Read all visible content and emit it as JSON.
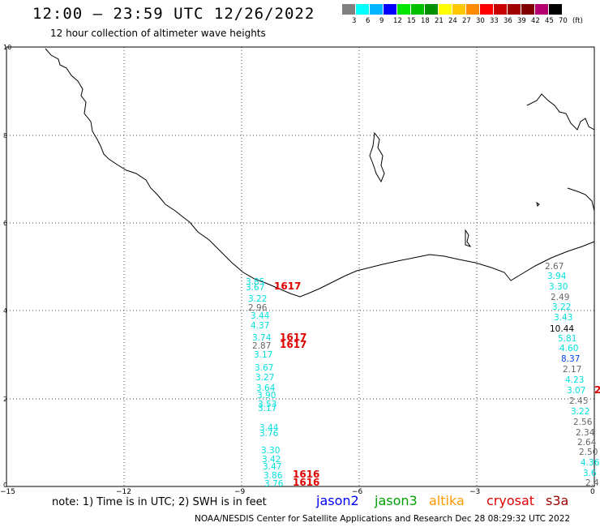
{
  "header": {
    "title": "12:00 – 23:59 UTC 12/26/2022",
    "subtitle": "12 hour collection of altimeter wave heights"
  },
  "colorbar": {
    "colors": [
      "#808080",
      "#00ffff",
      "#00b4ff",
      "#0000ff",
      "#00e600",
      "#00c000",
      "#009000",
      "#ffff00",
      "#ffc800",
      "#ff8c00",
      "#ff0000",
      "#c80000",
      "#a00000",
      "#800000",
      "#b4006e",
      "#000000"
    ],
    "labels": [
      "3",
      "6",
      "9",
      "12",
      "15",
      "18",
      "21",
      "24",
      "27",
      "30",
      "33",
      "36",
      "39",
      "42",
      "45",
      "70"
    ],
    "unit": "(ft)"
  },
  "axes": {
    "x_ticks": [
      "−15",
      "−12",
      "−9",
      "−6",
      "−3",
      "0"
    ],
    "y_ticks": [
      "10",
      "8",
      "6",
      "4",
      "2",
      "0"
    ]
  },
  "wave_colors": {
    "jason3": "#00e0e0",
    "gray": "#666666",
    "cryosat": "#e00000",
    "black": "#000000",
    "blue": "#0040ff"
  },
  "tracks": {
    "track_left": [
      {
        "v": "3.85",
        "c": "jason3"
      },
      {
        "v": "3.67",
        "c": "jason3"
      },
      {
        "v": "3.22",
        "c": "jason3"
      },
      {
        "v": "2.96",
        "c": "gray"
      },
      {
        "v": "3.44",
        "c": "jason3"
      },
      {
        "v": "4.37",
        "c": "jason3"
      },
      {
        "v": "3.74",
        "c": "jason3"
      },
      {
        "v": "2.87",
        "c": "gray"
      },
      {
        "v": "3.17",
        "c": "jason3"
      },
      {
        "v": "3.67",
        "c": "jason3"
      },
      {
        "v": "3.27",
        "c": "jason3"
      },
      {
        "v": "3.64",
        "c": "jason3"
      },
      {
        "v": "3.90",
        "c": "jason3"
      },
      {
        "v": "3.53",
        "c": "jason3"
      },
      {
        "v": "3.17",
        "c": "jason3"
      },
      {
        "v": "3.44",
        "c": "jason3"
      },
      {
        "v": "3.76",
        "c": "jason3"
      },
      {
        "v": "3.30",
        "c": "jason3"
      },
      {
        "v": "3.42",
        "c": "jason3"
      },
      {
        "v": "3.47",
        "c": "jason3"
      },
      {
        "v": "3.86",
        "c": "jason3"
      },
      {
        "v": "3.76",
        "c": "jason3"
      }
    ],
    "cryosat_times": [
      "1617",
      "1617",
      "1617",
      "1616",
      "1616"
    ],
    "track_right": [
      {
        "v": "2.67",
        "c": "gray"
      },
      {
        "v": "3.94",
        "c": "jason3"
      },
      {
        "v": "3.30",
        "c": "jason3"
      },
      {
        "v": "2.49",
        "c": "gray"
      },
      {
        "v": "3.22",
        "c": "jason3"
      },
      {
        "v": "3.43",
        "c": "jason3"
      },
      {
        "v": "10.44",
        "c": "black"
      },
      {
        "v": "5.81",
        "c": "jason3"
      },
      {
        "v": "4.60",
        "c": "jason3"
      },
      {
        "v": "8.37",
        "c": "blue"
      },
      {
        "v": "2.17",
        "c": "gray"
      },
      {
        "v": "4.23",
        "c": "jason3"
      },
      {
        "v": "3.07",
        "c": "jason3"
      },
      {
        "v": "2.45",
        "c": "gray"
      },
      {
        "v": "3.22",
        "c": "jason3"
      },
      {
        "v": "2.56",
        "c": "gray"
      },
      {
        "v": "2.34",
        "c": "gray"
      },
      {
        "v": "2.64",
        "c": "gray"
      },
      {
        "v": "2.50",
        "c": "gray"
      },
      {
        "v": "4.36",
        "c": "jason3"
      },
      {
        "v": "3.6",
        "c": "jason3"
      },
      {
        "v": "2.4",
        "c": "gray"
      }
    ],
    "edge_time": "2"
  },
  "note": "note: 1) Time is in UTC; 2) SWH is in feet",
  "legend": [
    {
      "label": "jason2",
      "color": "#0000ff"
    },
    {
      "label": "jason3",
      "color": "#00a000"
    },
    {
      "label": "altika",
      "color": "#ff9900"
    },
    {
      "label": "cryosat",
      "color": "#e00000"
    },
    {
      "label": "s3a",
      "color": "#990000"
    }
  ],
  "footer": "NOAA/NESDIS Center for Satellite Applications and Research    Dec 28 08:29:32 UTC 2022"
}
